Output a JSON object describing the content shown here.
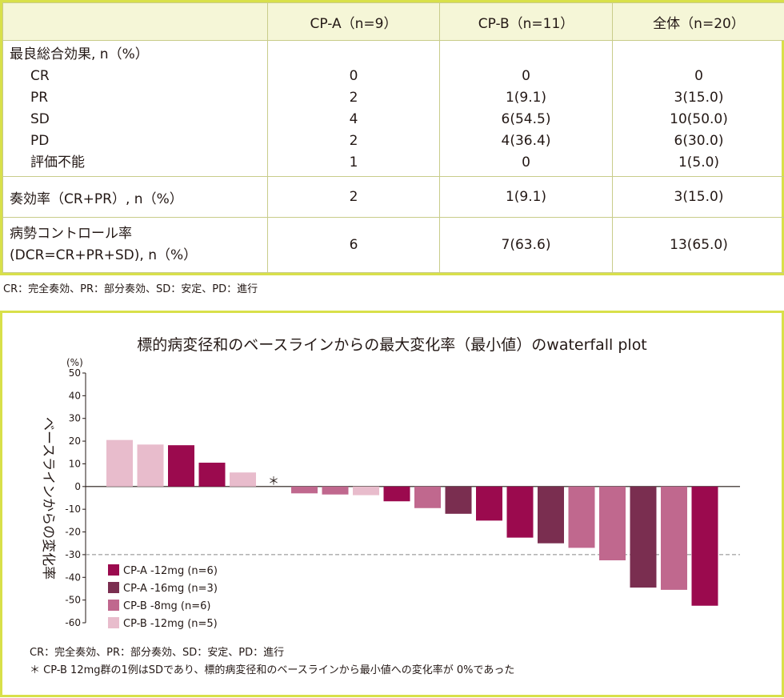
{
  "table": {
    "headers": [
      "",
      "CP-A（n=9）",
      "CP-B（n=11）",
      "全体（n=20）"
    ],
    "section1_title": "最良総合効果, n（%）",
    "section1_rows": [
      {
        "label": "CR",
        "a": "0",
        "b": "0",
        "t": "0"
      },
      {
        "label": "PR",
        "a": "2",
        "b": "1(9.1)",
        "t": "3(15.0)"
      },
      {
        "label": "SD",
        "a": "4",
        "b": "6(54.5)",
        "t": "10(50.0)"
      },
      {
        "label": "PD",
        "a": "2",
        "b": "4(36.4)",
        "t": "6(30.0)"
      },
      {
        "label": "評価不能",
        "a": "1",
        "b": "0",
        "t": "1(5.0)"
      }
    ],
    "orr": {
      "label": "奏効率（CR+PR）, n（%）",
      "a": "2",
      "b": "1(9.1)",
      "t": "3(15.0)"
    },
    "dcr": {
      "label1": "病勢コントロール率",
      "label2": "(DCR=CR+PR+SD), n（%）",
      "a": "6",
      "b": "7(63.6)",
      "t": "13(65.0)"
    }
  },
  "table_footnote": "CR：完全奏効、PR：部分奏効、SD：安定、PD：進行",
  "chart_data": {
    "type": "bar",
    "title": "標的病変径和のベースラインからの最大変化率（最小値）のwaterfall plot",
    "ylabel": "ベースラインからの変化率",
    "yunit": "(%)",
    "ylim": [
      -60,
      50
    ],
    "yticks": [
      50,
      40,
      30,
      20,
      10,
      0,
      -10,
      -20,
      -30,
      -40,
      -50,
      -60
    ],
    "reference_line": -30,
    "colors": {
      "CP-A -12mg": "#9b0a4e",
      "CP-A -16mg": "#7a2e50",
      "CP-B -8mg": "#c0688e",
      "CP-B -12mg": "#e8bccc"
    },
    "legend": [
      "CP-A -12mg (n=6)",
      "CP-A -16mg (n=3)",
      "CP-B -8mg (n=6)",
      "CP-B -12mg (n=5)"
    ],
    "legend_keys": [
      "CP-A -12mg",
      "CP-A -16mg",
      "CP-B -8mg",
      "CP-B -12mg"
    ],
    "bars": [
      {
        "group": "CP-B -12mg",
        "value": 20.5
      },
      {
        "group": "CP-B -12mg",
        "value": 18.5
      },
      {
        "group": "CP-A -12mg",
        "value": 18.2
      },
      {
        "group": "CP-A -12mg",
        "value": 10.5
      },
      {
        "group": "CP-B -12mg",
        "value": 6.2
      },
      {
        "group": "CP-B -12mg",
        "value": 0,
        "annotation": "＊"
      },
      {
        "group": "CP-B -8mg",
        "value": -3.0
      },
      {
        "group": "CP-B -8mg",
        "value": -3.5
      },
      {
        "group": "CP-B -12mg",
        "value": -3.8
      },
      {
        "group": "CP-A -12mg",
        "value": -6.5
      },
      {
        "group": "CP-B -8mg",
        "value": -9.5
      },
      {
        "group": "CP-A -16mg",
        "value": -12.0
      },
      {
        "group": "CP-A -12mg",
        "value": -15.0
      },
      {
        "group": "CP-A -12mg",
        "value": -22.5
      },
      {
        "group": "CP-A -16mg",
        "value": -25.0
      },
      {
        "group": "CP-B -8mg",
        "value": -27.0
      },
      {
        "group": "CP-B -8mg",
        "value": -32.5
      },
      {
        "group": "CP-A -16mg",
        "value": -44.5
      },
      {
        "group": "CP-B -8mg",
        "value": -45.5
      },
      {
        "group": "CP-A -12mg",
        "value": -52.5
      }
    ]
  },
  "chart_footnotes": [
    "CR：完全奏効、PR：部分奏効、SD：安定、PD：進行",
    "＊ CP-B 12mg群の1例はSDであり、標的病変径和のベースラインから最小値への変化率が 0%であった"
  ]
}
